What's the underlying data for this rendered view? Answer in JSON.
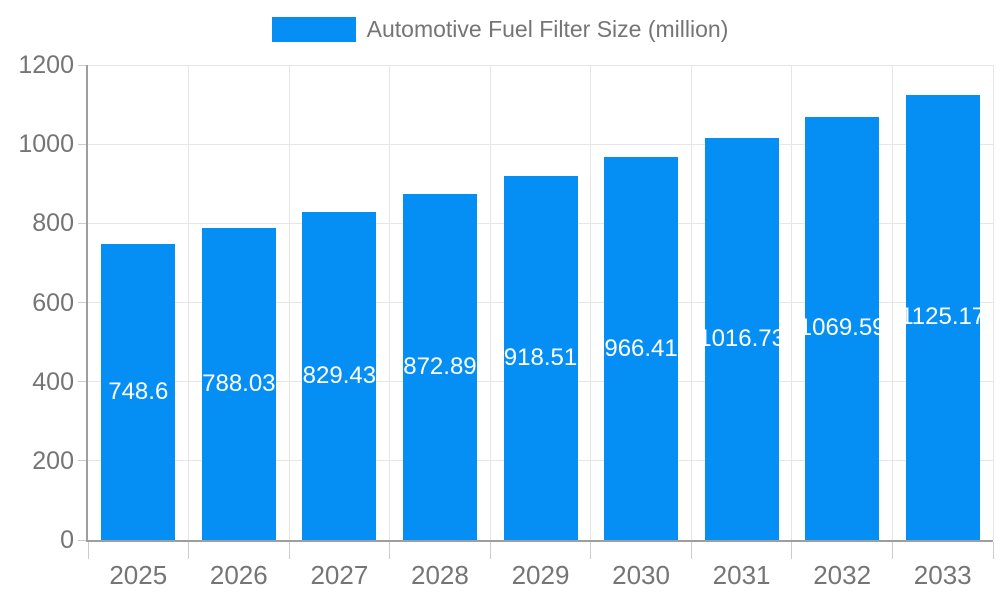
{
  "chart_data": {
    "type": "bar",
    "title": "Automotive Fuel Filter Size (million)",
    "categories": [
      "2025",
      "2026",
      "2027",
      "2028",
      "2029",
      "2030",
      "2031",
      "2032",
      "2033"
    ],
    "values": [
      748.6,
      788.03,
      829.43,
      872.89,
      918.51,
      966.41,
      1016.73,
      1069.59,
      1125.17
    ],
    "xlabel": "",
    "ylabel": "",
    "ylim": [
      0,
      1200
    ],
    "yticks": [
      0,
      200,
      400,
      600,
      800,
      1000,
      1200
    ],
    "grid": true,
    "legend_position": "top",
    "colors": {
      "bar": "#058ff5",
      "gridline": "#e6e6e6",
      "axis": "#9e9e9e",
      "tick": "#cccccc",
      "axis_text": "#757575",
      "value_label": "#ffffff",
      "background": "#ffffff"
    }
  },
  "legend": {
    "label": "Automotive Fuel Filter Size (million)"
  }
}
